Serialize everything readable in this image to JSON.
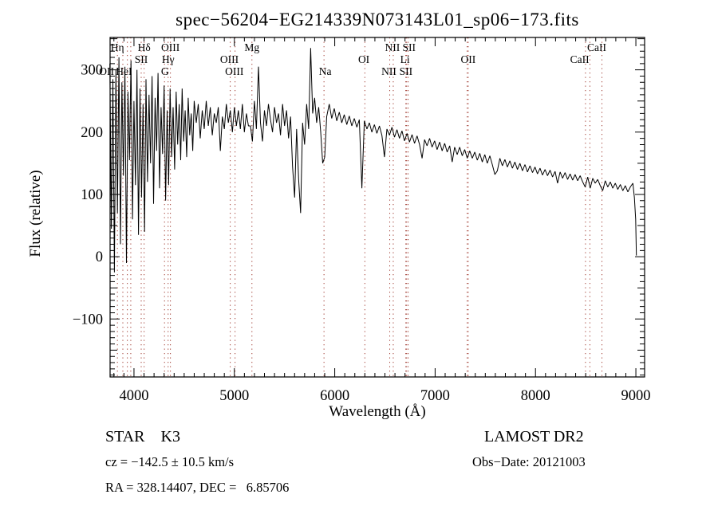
{
  "title": "spec−56204−EG214339N073143L01_sp06−173.fits",
  "footer": {
    "star_class": "STAR    K3",
    "survey": "LAMOST DR2",
    "cz": "cz = −142.5 ± 10.5 km/s",
    "obs_date": "Obs−Date: 20121003",
    "radec": "RA = 328.14407, DEC =   6.85706"
  },
  "chart_data": {
    "type": "line",
    "title": "spec−56204−EG214339N073143L01_sp06−173.fits",
    "xlabel": "Wavelength (Å)",
    "ylabel": "Flux (relative)",
    "xlim": [
      3762,
      9087
    ],
    "ylim": [
      -193,
      352
    ],
    "grid": false,
    "line_color": "#000000",
    "marker_color": "#a03a30",
    "x_tick_labels": [
      "4000",
      "5000",
      "6000",
      "7000",
      "8000",
      "9000"
    ],
    "x_major_ticks": [
      4000,
      5000,
      6000,
      7000,
      8000,
      9000
    ],
    "x_minor_step": 100,
    "y_tick_labels": [
      "300",
      "200",
      "100",
      "0",
      "−100"
    ],
    "y_major_ticks": [
      300,
      200,
      100,
      0,
      -100
    ],
    "y_minor_step": 10,
    "y_medium_step": 50,
    "spectral_lines": [
      3835,
      3889,
      3934,
      3968,
      4072,
      4101,
      4304,
      4340,
      4363,
      4959,
      5007,
      5175,
      5893,
      6300,
      6548,
      6583,
      6708,
      6716,
      6731,
      7319,
      7330,
      8498,
      8542,
      8662
    ],
    "line_labels": [
      {
        "text": "Hη",
        "row": 1,
        "lambda": 3835
      },
      {
        "text": "Hδ",
        "row": 1,
        "lambda": 4101
      },
      {
        "text": "OIII",
        "row": 1,
        "lambda": 4363
      },
      {
        "text": "Mg",
        "row": 1,
        "lambda": 5175
      },
      {
        "text": "NII",
        "row": 1,
        "lambda": 6575
      },
      {
        "text": "SII",
        "row": 1,
        "lambda": 6740
      },
      {
        "text": "CaII",
        "row": 1,
        "lambda": 8610
      },
      {
        "text": "SII",
        "row": 2,
        "lambda": 4072
      },
      {
        "text": "Hγ",
        "row": 2,
        "lambda": 4340
      },
      {
        "text": "OIII",
        "row": 2,
        "lambda": 4950
      },
      {
        "text": "OI",
        "row": 2,
        "lambda": 6290
      },
      {
        "text": "Li",
        "row": 2,
        "lambda": 6700
      },
      {
        "text": "OII",
        "row": 2,
        "lambda": 7330
      },
      {
        "text": "CaII",
        "row": 2,
        "lambda": 8440
      },
      {
        "text": "OII",
        "row": 3,
        "lambda": 3727
      },
      {
        "text": "HeI",
        "row": 3,
        "lambda": 3900
      },
      {
        "text": "G",
        "row": 3,
        "lambda": 4308
      },
      {
        "text": "OIII",
        "row": 3,
        "lambda": 5000
      },
      {
        "text": "Na",
        "row": 3,
        "lambda": 5905
      },
      {
        "text": "NII",
        "row": 3,
        "lambda": 6540
      },
      {
        "text": "SII",
        "row": 3,
        "lambda": 6710
      }
    ],
    "spectrum": {
      "segments": [
        {
          "start": 3760,
          "step": 15,
          "flux": [
            310,
            45,
            285,
            -25,
            300,
            70,
            320,
            20,
            280,
            130,
            305,
            -10,
            265,
            155,
            315,
            60,
            250,
            115,
            300,
            35,
            270,
            95,
            245,
            40,
            285,
            120,
            260,
            150,
            290,
            85,
            255,
            170,
            295,
            110,
            240,
            165,
            275,
            90,
            235,
            115,
            270,
            160,
            240,
            140,
            265,
            180,
            245,
            155,
            270,
            185,
            235,
            160,
            255,
            195,
            230,
            170,
            250
          ]
        },
        {
          "start": 4620,
          "step": 20,
          "flux": [
            215,
            245,
            190,
            235,
            205,
            250,
            210,
            240,
            195,
            230,
            215,
            240,
            170,
            225,
            205,
            245,
            215,
            235,
            200,
            240,
            210,
            235,
            205,
            245,
            200,
            230,
            210,
            210,
            185,
            250,
            205,
            305,
            215,
            185,
            235,
            210,
            245,
            220,
            200,
            240,
            215,
            230,
            195,
            245,
            210,
            235,
            190,
            225,
            145,
            95,
            205,
            125,
            70,
            215,
            180,
            245,
            205,
            335,
            230,
            255,
            215,
            240,
            200,
            150,
            160
          ]
        },
        {
          "start": 5920,
          "step": 25,
          "flux": [
            225,
            245,
            222,
            238,
            218,
            232,
            215,
            228,
            212,
            226,
            210,
            222,
            208,
            220,
            110,
            218,
            205,
            215,
            200,
            212,
            198,
            210,
            195,
            160,
            205,
            195,
            208,
            192,
            204,
            190,
            202,
            186,
            198,
            184,
            196,
            182,
            194,
            180,
            158,
            188,
            178,
            190,
            176,
            186,
            172,
            184,
            170,
            182,
            168,
            178,
            152,
            176,
            164,
            176,
            162,
            172,
            158,
            170,
            158,
            168,
            155,
            166,
            152,
            164,
            150,
            162,
            148,
            132,
            138,
            158,
            146,
            156,
            144,
            154,
            142,
            152,
            140,
            150,
            138,
            148,
            136,
            146,
            135,
            144,
            133,
            142,
            131,
            140,
            130,
            139,
            128,
            137,
            118,
            136,
            126,
            135,
            124,
            133,
            123,
            132,
            122,
            130,
            120,
            112,
            128,
            110,
            126,
            118,
            124,
            114,
            106,
            122,
            112,
            120,
            110,
            118,
            108,
            116,
            106,
            114,
            104,
            112,
            118
          ]
        }
      ],
      "tail": [
        [
          8985,
          95
        ],
        [
          8998,
          60
        ],
        [
          9005,
          2
        ]
      ]
    }
  }
}
